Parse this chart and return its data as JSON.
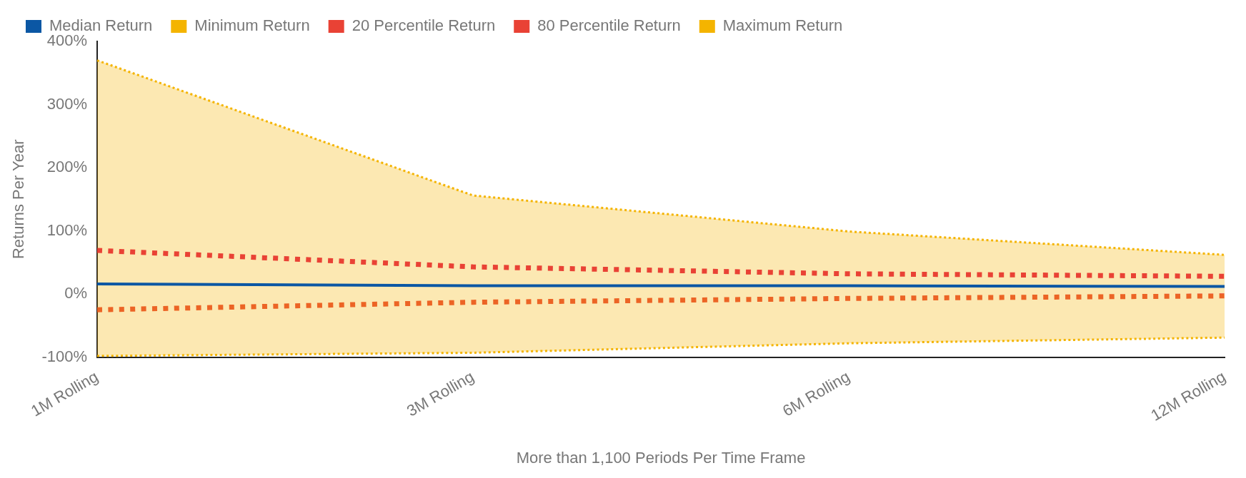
{
  "chart_data": {
    "type": "line",
    "xlabel": "More than 1,100 Periods Per Time Frame",
    "ylabel": "Returns Per Year",
    "categories": [
      "1M Rolling",
      "3M Rolling",
      "6M Rolling",
      "12M Rolling"
    ],
    "series": [
      {
        "name": "Median Return",
        "color": "#0b57a4",
        "values": [
          16,
          13,
          13,
          12
        ],
        "line_style": "solid"
      },
      {
        "name": "Minimum Return",
        "type": "area",
        "color": "#f4b400",
        "values": [
          -98,
          -93,
          -78,
          -69
        ],
        "line_style": "dotted"
      },
      {
        "name": "20 Percentile Return",
        "color": "#e94235",
        "values": [
          -25,
          -13,
          -7,
          -3
        ],
        "line_style": "dotted"
      },
      {
        "name": "80 Percentile Return",
        "color": "#e94235",
        "values": [
          69,
          43,
          32,
          28
        ],
        "line_style": "dotted"
      },
      {
        "name": "Maximum Return",
        "type": "area",
        "color": "#f4b400",
        "values": [
          370,
          156,
          99,
          62
        ],
        "line_style": "dotted"
      }
    ],
    "ylim": [
      -100,
      400
    ],
    "yticks": [
      {
        "value": -100,
        "label": "-100%"
      },
      {
        "value": 0,
        "label": "0%"
      },
      {
        "value": 100,
        "label": "100%"
      },
      {
        "value": 200,
        "label": "200%"
      },
      {
        "value": 300,
        "label": "300%"
      },
      {
        "value": 400,
        "label": "400%"
      }
    ],
    "grid": false,
    "legend": "top left",
    "marker": "none"
  }
}
